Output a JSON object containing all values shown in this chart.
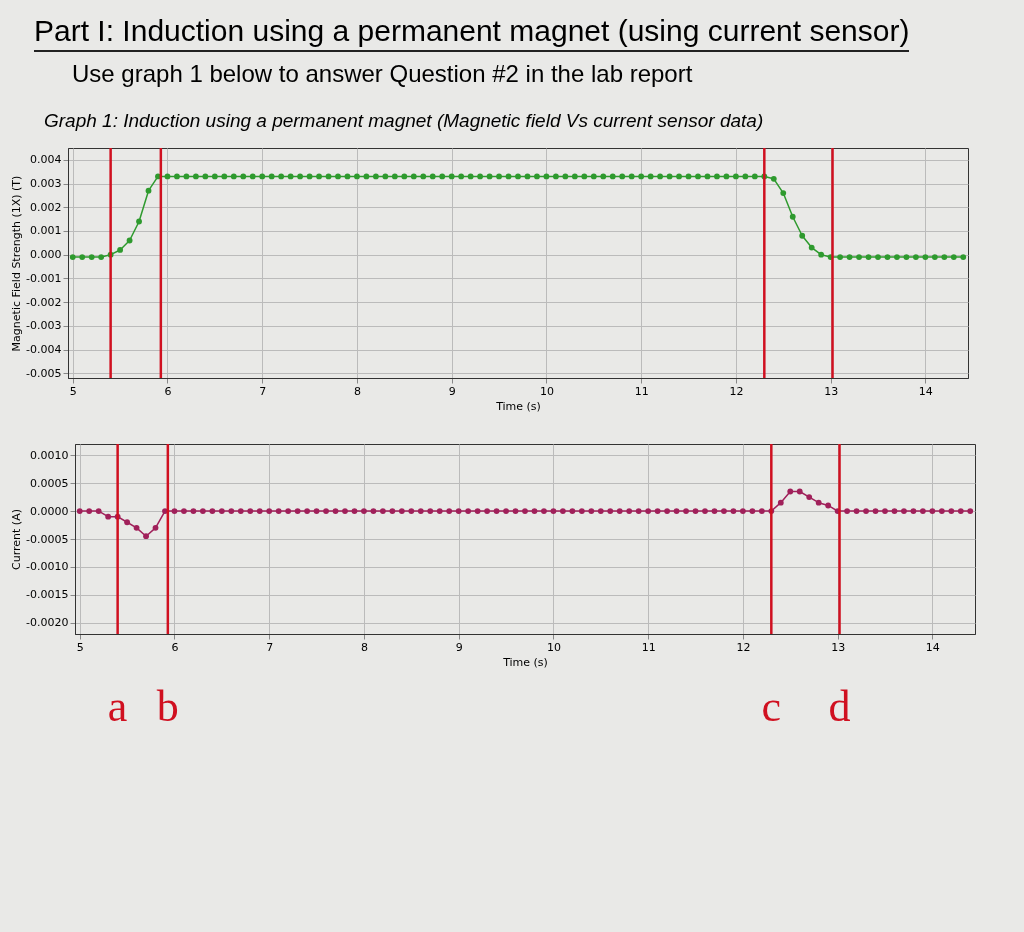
{
  "chart_data": [
    {
      "type": "line",
      "title": "Part I: Induction using a permanent magnet (using current sensor)",
      "subtitle": "Use graph 1 below to answer Question #2 in the lab report",
      "annotations": [
        "Graph 1: Induction using a permanent magnet (Magnetic field Vs current sensor data)"
      ],
      "xlabel": "Time (s)",
      "ylabel": "Magnetic Field Strength (1X) (T)",
      "grid": true,
      "marker": "circle",
      "xlim": [
        4.95,
        14.45
      ],
      "xticks": [
        5,
        6,
        7,
        8,
        9,
        10,
        11,
        12,
        13,
        14
      ],
      "ylim": [
        -0.0052,
        0.0045
      ],
      "yticks": [
        {
          "value": 0.004,
          "label": "0.004"
        },
        {
          "value": 0.003,
          "label": "0.003"
        },
        {
          "value": 0.002,
          "label": "0.002"
        },
        {
          "value": 0.001,
          "label": "0.001"
        },
        {
          "value": 0,
          "label": "0.000"
        },
        {
          "value": -0.001,
          "label": "-0.001"
        },
        {
          "value": -0.002,
          "label": "-0.002"
        },
        {
          "value": -0.003,
          "label": "-0.003"
        },
        {
          "value": -0.004,
          "label": "-0.004"
        },
        {
          "value": -0.005,
          "label": "-0.005"
        }
      ],
      "x": [
        5,
        5.1,
        5.2,
        5.3,
        5.4,
        5.5,
        5.6,
        5.7,
        5.8,
        5.9,
        6,
        6.1,
        6.2,
        6.3,
        6.4,
        6.5,
        6.6,
        6.7,
        6.8,
        6.9,
        7,
        7.1,
        7.2,
        7.3,
        7.4,
        7.5,
        7.6,
        7.7,
        7.8,
        7.9,
        8,
        8.1,
        8.2,
        8.3,
        8.4,
        8.5,
        8.6,
        8.7,
        8.8,
        8.9,
        9,
        9.1,
        9.2,
        9.3,
        9.4,
        9.5,
        9.6,
        9.7,
        9.8,
        9.9,
        10,
        10.1,
        10.2,
        10.3,
        10.4,
        10.5,
        10.6,
        10.7,
        10.8,
        10.9,
        11,
        11.1,
        11.2,
        11.3,
        11.4,
        11.5,
        11.6,
        11.7,
        11.8,
        11.9,
        12,
        12.1,
        12.2,
        12.3,
        12.4,
        12.5,
        12.6,
        12.7,
        12.8,
        12.9,
        13,
        13.1,
        13.2,
        13.3,
        13.4,
        13.5,
        13.6,
        13.7,
        13.8,
        13.9,
        14,
        14.1,
        14.2,
        14.3,
        14.4
      ],
      "series": [
        {
          "color": "#2e9a2e",
          "values": [
            -0.0001,
            -0.0001,
            -0.0001,
            -0.0001,
            0,
            0.0002,
            0.0006,
            0.0014,
            0.0027,
            0.0033,
            0.0033,
            0.0033,
            0.0033,
            0.0033,
            0.0033,
            0.0033,
            0.0033,
            0.0033,
            0.0033,
            0.0033,
            0.0033,
            0.0033,
            0.0033,
            0.0033,
            0.0033,
            0.0033,
            0.0033,
            0.0033,
            0.0033,
            0.0033,
            0.0033,
            0.0033,
            0.0033,
            0.0033,
            0.0033,
            0.0033,
            0.0033,
            0.0033,
            0.0033,
            0.0033,
            0.0033,
            0.0033,
            0.0033,
            0.0033,
            0.0033,
            0.0033,
            0.0033,
            0.0033,
            0.0033,
            0.0033,
            0.0033,
            0.0033,
            0.0033,
            0.0033,
            0.0033,
            0.0033,
            0.0033,
            0.0033,
            0.0033,
            0.0033,
            0.0033,
            0.0033,
            0.0033,
            0.0033,
            0.0033,
            0.0033,
            0.0033,
            0.0033,
            0.0033,
            0.0033,
            0.0033,
            0.0033,
            0.0033,
            0.0033,
            0.0032,
            0.0026,
            0.0016,
            0.0008,
            0.0003,
            0,
            -0.0001,
            -0.0001,
            -0.0001,
            -0.0001,
            -0.0001,
            -0.0001,
            -0.0001,
            -0.0001,
            -0.0001,
            -0.0001,
            -0.0001,
            -0.0001,
            -0.0001,
            -0.0001,
            -0.0001
          ]
        }
      ],
      "ref_lines": [
        {
          "axis": "x",
          "value": 5.4,
          "color": "#d01020"
        },
        {
          "axis": "x",
          "value": 5.93,
          "color": "#d01020"
        },
        {
          "axis": "x",
          "value": 12.3,
          "color": "#d01020"
        },
        {
          "axis": "x",
          "value": 13.02,
          "color": "#d01020"
        }
      ]
    },
    {
      "type": "line",
      "xlabel": "Time (s)",
      "ylabel": "Current (A)",
      "grid": true,
      "marker": "circle",
      "xlim": [
        4.95,
        14.45
      ],
      "xticks": [
        5,
        6,
        7,
        8,
        9,
        10,
        11,
        12,
        13,
        14
      ],
      "ylim": [
        -0.0022,
        0.0012
      ],
      "yticks": [
        {
          "value": 0.001,
          "label": "0.0010"
        },
        {
          "value": 0.0005,
          "label": "0.0005"
        },
        {
          "value": 0,
          "label": "0.0000"
        },
        {
          "value": -0.0005,
          "label": "-0.0005"
        },
        {
          "value": -0.001,
          "label": "-0.0010"
        },
        {
          "value": -0.0015,
          "label": "-0.0015"
        },
        {
          "value": -0.002,
          "label": "-0.0020"
        }
      ],
      "x": [
        5,
        5.1,
        5.2,
        5.3,
        5.4,
        5.5,
        5.6,
        5.7,
        5.8,
        5.9,
        6,
        6.1,
        6.2,
        6.3,
        6.4,
        6.5,
        6.6,
        6.7,
        6.8,
        6.9,
        7,
        7.1,
        7.2,
        7.3,
        7.4,
        7.5,
        7.6,
        7.7,
        7.8,
        7.9,
        8,
        8.1,
        8.2,
        8.3,
        8.4,
        8.5,
        8.6,
        8.7,
        8.8,
        8.9,
        9,
        9.1,
        9.2,
        9.3,
        9.4,
        9.5,
        9.6,
        9.7,
        9.8,
        9.9,
        10,
        10.1,
        10.2,
        10.3,
        10.4,
        10.5,
        10.6,
        10.7,
        10.8,
        10.9,
        11,
        11.1,
        11.2,
        11.3,
        11.4,
        11.5,
        11.6,
        11.7,
        11.8,
        11.9,
        12,
        12.1,
        12.2,
        12.3,
        12.4,
        12.5,
        12.6,
        12.7,
        12.8,
        12.9,
        13,
        13.1,
        13.2,
        13.3,
        13.4,
        13.5,
        13.6,
        13.7,
        13.8,
        13.9,
        14,
        14.1,
        14.2,
        14.3,
        14.4
      ],
      "series": [
        {
          "color": "#a0205a",
          "values": [
            0,
            0,
            0,
            -0.0001,
            -0.0001,
            -0.0002,
            -0.0003,
            -0.00045,
            -0.0003,
            0,
            0,
            0,
            0,
            0,
            0,
            0,
            0,
            0,
            0,
            0,
            0,
            0,
            0,
            0,
            0,
            0,
            0,
            0,
            0,
            0,
            0,
            0,
            0,
            0,
            0,
            0,
            0,
            0,
            0,
            0,
            0,
            0,
            0,
            0,
            0,
            0,
            0,
            0,
            0,
            0,
            0,
            0,
            0,
            0,
            0,
            0,
            0,
            0,
            0,
            0,
            0,
            0,
            0,
            0,
            0,
            0,
            0,
            0,
            0,
            0,
            0,
            0,
            0,
            0,
            0.00015,
            0.00035,
            0.00035,
            0.00025,
            0.00015,
            0.0001,
            0,
            0,
            0,
            0,
            0,
            0,
            0,
            0,
            0,
            0,
            0,
            0,
            0,
            0,
            0
          ]
        }
      ],
      "ref_lines": [
        {
          "axis": "x",
          "value": 5.4,
          "label": "a",
          "color": "#d01020"
        },
        {
          "axis": "x",
          "value": 5.93,
          "label": "b",
          "color": "#d01020"
        },
        {
          "axis": "x",
          "value": 12.3,
          "label": "c",
          "color": "#d01020"
        },
        {
          "axis": "x",
          "value": 13.02,
          "label": "d",
          "color": "#d01020"
        }
      ]
    }
  ]
}
